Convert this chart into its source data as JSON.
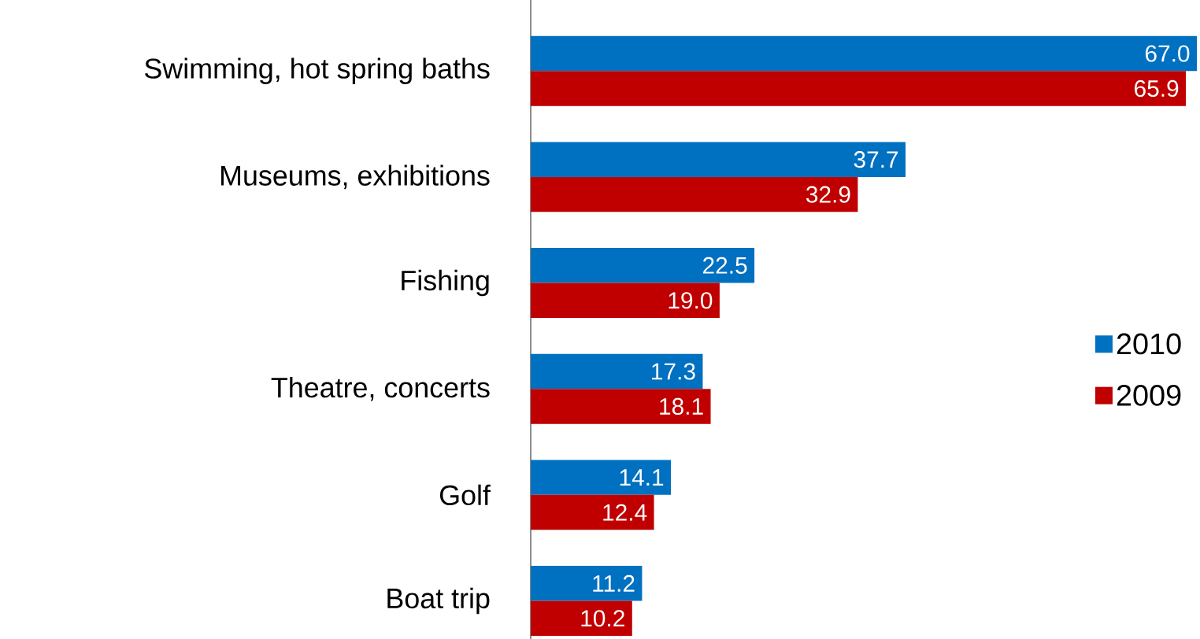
{
  "chart_data": {
    "type": "bar",
    "orientation": "horizontal",
    "categories": [
      "Swimming, hot spring baths",
      "Museums, exhibitions",
      "Fishing",
      "Theatre, concerts",
      "Golf",
      "Boat trip"
    ],
    "series": [
      {
        "name": "2010",
        "color": "#0070c0",
        "values": [
          67.0,
          37.7,
          22.5,
          17.3,
          14.1,
          11.2
        ],
        "value_labels": [
          "67.0",
          "37.7",
          "22.5",
          "17.3",
          "14.1",
          "11.2"
        ]
      },
      {
        "name": "2009",
        "color": "#c00000",
        "values": [
          65.9,
          32.9,
          19.0,
          18.1,
          12.4,
          10.2
        ],
        "value_labels": [
          "65.9",
          "32.9",
          "19.0",
          "18.1",
          "12.4",
          "10.2"
        ]
      }
    ],
    "legend": "right"
  }
}
